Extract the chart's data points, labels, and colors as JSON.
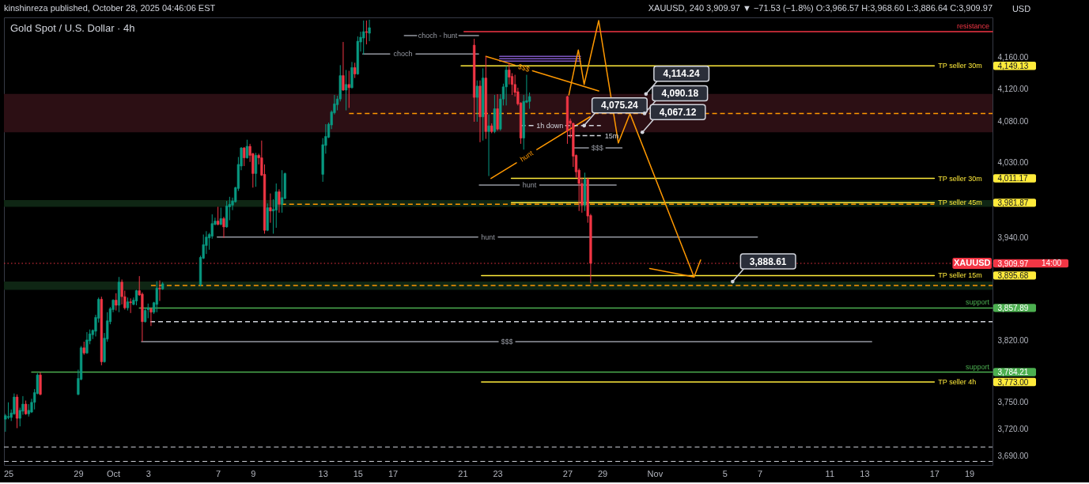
{
  "chart_data": {
    "type": "candlestick",
    "title": "Gold Spot / U.S. Dollar · 4h",
    "subtitle": "XAUUSD, 240 3,909.97 ▼ −71.53 (−1.8%) O:3,966.57 H:3,968.60 L:3,886.64 C:3,909.97",
    "ylabel": "USD",
    "log": true,
    "xlim": [
      "2025-09-24T18:00",
      "2025-11-20T08:00"
    ],
    "ylim": [
      3680,
      4210
    ],
    "xticks": [
      {
        "value": "2025-09-25",
        "label": "25"
      },
      {
        "value": "2025-09-29",
        "label": "29"
      },
      {
        "value": "2025-10-01",
        "label": "Oct"
      },
      {
        "value": "2025-10-03",
        "label": "3"
      },
      {
        "value": "2025-10-07",
        "label": "7"
      },
      {
        "value": "2025-10-09",
        "label": "9"
      },
      {
        "value": "2025-10-13",
        "label": "13"
      },
      {
        "value": "2025-10-15",
        "label": "15"
      },
      {
        "value": "2025-10-17",
        "label": "17"
      },
      {
        "value": "2025-10-21",
        "label": "21"
      },
      {
        "value": "2025-10-23",
        "label": "23"
      },
      {
        "value": "2025-10-27",
        "label": "27"
      },
      {
        "value": "2025-10-29",
        "label": "29"
      },
      {
        "value": "2025-11-01",
        "label": "Nov"
      },
      {
        "value": "2025-11-05",
        "label": "5"
      },
      {
        "value": "2025-11-07",
        "label": "7"
      },
      {
        "value": "2025-11-11",
        "label": "11"
      },
      {
        "value": "2025-11-13",
        "label": "13"
      },
      {
        "value": "2025-11-17",
        "label": "17"
      },
      {
        "value": "2025-11-19",
        "label": "19"
      }
    ],
    "yticks": [
      {
        "value": 4160,
        "label": "4,160.00"
      },
      {
        "value": 4149.13,
        "label": "4,149.13"
      },
      {
        "value": 4120,
        "label": "4,120.00"
      },
      {
        "value": 4080,
        "label": "4,080.00"
      },
      {
        "value": 4030,
        "label": "4,030.00"
      },
      {
        "value": 4011.17,
        "label": "4,011.17"
      },
      {
        "value": 3981.87,
        "label": "3,981.87"
      },
      {
        "value": 3940,
        "label": "3,940.00"
      },
      {
        "value": 3909.97,
        "label": "3,909.97"
      },
      {
        "value": 3895.68,
        "label": "3,895.68"
      },
      {
        "value": 3857.89,
        "label": "3,857.89"
      },
      {
        "value": 3820,
        "label": "3,820.00"
      },
      {
        "value": 3784.21,
        "label": "3,784.21"
      },
      {
        "value": 3773,
        "label": "3,773.00"
      },
      {
        "value": 3750,
        "label": "3,750.00"
      },
      {
        "value": 3720,
        "label": "3,720.00"
      },
      {
        "value": 3690,
        "label": "3,690.00"
      }
    ],
    "x": [
      "2025-09-24T20:00",
      "2025-09-25T00:00",
      "2025-09-25T04:00",
      "2025-09-25T08:00",
      "2025-09-25T12:00",
      "2025-09-25T16:00",
      "2025-09-25T20:00",
      "2025-09-26T00:00",
      "2025-09-26T04:00",
      "2025-09-26T08:00",
      "2025-09-26T12:00",
      "2025-09-26T16:00",
      "2025-09-26T20:00",
      "2025-09-29T00:00",
      "2025-09-29T04:00",
      "2025-09-29T08:00",
      "2025-09-29T12:00",
      "2025-09-29T16:00",
      "2025-09-29T20:00",
      "2025-09-30T00:00",
      "2025-09-30T04:00",
      "2025-09-30T08:00",
      "2025-09-30T12:00",
      "2025-09-30T16:00",
      "2025-09-30T20:00",
      "2025-10-01T00:00",
      "2025-10-01T04:00",
      "2025-10-01T08:00",
      "2025-10-01T12:00",
      "2025-10-01T16:00",
      "2025-10-01T20:00",
      "2025-10-02T00:00",
      "2025-10-02T04:00",
      "2025-10-02T08:00",
      "2025-10-02T12:00",
      "2025-10-02T16:00",
      "2025-10-02T20:00",
      "2025-10-03T00:00",
      "2025-10-03T04:00",
      "2025-10-03T08:00",
      "2025-10-03T12:00",
      "2025-10-03T16:00",
      "2025-10-03T20:00",
      "2025-10-06T00:00",
      "2025-10-06T04:00",
      "2025-10-06T08:00",
      "2025-10-06T12:00",
      "2025-10-06T16:00",
      "2025-10-06T20:00",
      "2025-10-07T00:00",
      "2025-10-07T04:00",
      "2025-10-07T08:00",
      "2025-10-07T12:00",
      "2025-10-07T16:00",
      "2025-10-07T20:00",
      "2025-10-08T00:00",
      "2025-10-08T04:00",
      "2025-10-08T08:00",
      "2025-10-08T12:00",
      "2025-10-08T16:00",
      "2025-10-08T20:00",
      "2025-10-09T00:00",
      "2025-10-09T04:00",
      "2025-10-09T08:00",
      "2025-10-09T12:00",
      "2025-10-09T16:00",
      "2025-10-09T20:00",
      "2025-10-10T00:00",
      "2025-10-10T04:00",
      "2025-10-10T08:00",
      "2025-10-10T12:00",
      "2025-10-10T16:00",
      "2025-10-10T20:00",
      "2025-10-13T00:00",
      "2025-10-13T04:00",
      "2025-10-13T08:00",
      "2025-10-13T12:00",
      "2025-10-13T16:00",
      "2025-10-13T20:00",
      "2025-10-14T00:00",
      "2025-10-14T04:00",
      "2025-10-14T08:00",
      "2025-10-14T12:00",
      "2025-10-14T16:00",
      "2025-10-14T20:00",
      "2025-10-15T00:00",
      "2025-10-15T04:00",
      "2025-10-15T08:00",
      "2025-10-15T12:00",
      "2025-10-15T16:00",
      "2025-10-21T16:00",
      "2025-10-21T20:00",
      "2025-10-22T00:00",
      "2025-10-22T04:00",
      "2025-10-22T08:00",
      "2025-10-22T12:00",
      "2025-10-22T16:00",
      "2025-10-22T20:00",
      "2025-10-23T00:00",
      "2025-10-23T04:00",
      "2025-10-23T08:00",
      "2025-10-23T12:00",
      "2025-10-23T16:00",
      "2025-10-23T20:00",
      "2025-10-24T00:00",
      "2025-10-24T04:00",
      "2025-10-24T08:00",
      "2025-10-24T12:00",
      "2025-10-24T16:00",
      "2025-10-24T20:00",
      "2025-10-27T00:00",
      "2025-10-27T04:00",
      "2025-10-27T08:00",
      "2025-10-27T12:00",
      "2025-10-27T16:00",
      "2025-10-27T20:00",
      "2025-10-28T00:00",
      "2025-10-28T04:00",
      "2025-10-28T08:00"
    ],
    "ohlc": [
      [
        3731,
        3737,
        3717,
        3735
      ],
      [
        3733,
        3750,
        3731,
        3734
      ],
      [
        3733,
        3742,
        3729,
        3738
      ],
      [
        3737,
        3760,
        3736,
        3756
      ],
      [
        3756,
        3759,
        3721,
        3732
      ],
      [
        3732,
        3744,
        3723,
        3741
      ],
      [
        3740,
        3757,
        3736,
        3748
      ],
      [
        3748,
        3752,
        3736,
        3737
      ],
      [
        3737,
        3748,
        3734,
        3741
      ],
      [
        3739,
        3754,
        3738,
        3750
      ],
      [
        3750,
        3765,
        3742,
        3761
      ],
      [
        3760,
        3783,
        3759,
        3781
      ],
      [
        3781,
        3784,
        3758,
        3759
      ],
      [
        3759,
        3787,
        3758,
        3777
      ],
      [
        3776,
        3814,
        3775,
        3812
      ],
      [
        3812,
        3819,
        3804,
        3806
      ],
      [
        3806,
        3830,
        3805,
        3821
      ],
      [
        3820,
        3833,
        3816,
        3828
      ],
      [
        3827,
        3833,
        3822,
        3832
      ],
      [
        3831,
        3850,
        3825,
        3847
      ],
      [
        3846,
        3870,
        3841,
        3868
      ],
      [
        3868,
        3871,
        3792,
        3796
      ],
      [
        3796,
        3829,
        3795,
        3823
      ],
      [
        3822,
        3853,
        3819,
        3843
      ],
      [
        3842,
        3859,
        3839,
        3857
      ],
      [
        3856,
        3868,
        3853,
        3867
      ],
      [
        3867,
        3875,
        3855,
        3861
      ],
      [
        3861,
        3894,
        3853,
        3888
      ],
      [
        3888,
        3891,
        3862,
        3871
      ],
      [
        3871,
        3878,
        3856,
        3858
      ],
      [
        3858,
        3870,
        3855,
        3865
      ],
      [
        3865,
        3869,
        3852,
        3864
      ],
      [
        3862,
        3870,
        3861,
        3867
      ],
      [
        3866,
        3879,
        3861,
        3878
      ],
      [
        3878,
        3895,
        3872,
        3873
      ],
      [
        3874,
        3876,
        3819,
        3842
      ],
      [
        3842,
        3858,
        3841,
        3855
      ],
      [
        3856,
        3863,
        3846,
        3858
      ],
      [
        3857,
        3858,
        3837,
        3853
      ],
      [
        3853,
        3865,
        3851,
        3864
      ],
      [
        3862,
        3889,
        3853,
        3881
      ],
      [
        3881,
        3890,
        3866,
        3880
      ],
      [
        3880,
        3888,
        3879,
        3886
      ],
      [
        3885,
        3919,
        3883,
        3917
      ],
      [
        3916,
        3944,
        3915,
        3932
      ],
      [
        3931,
        3948,
        3921,
        3941
      ],
      [
        3940,
        3946,
        3926,
        3944
      ],
      [
        3942,
        3968,
        3939,
        3957
      ],
      [
        3956,
        3964,
        3955,
        3960
      ],
      [
        3960,
        3977,
        3955,
        3956
      ],
      [
        3956,
        3976,
        3955,
        3963
      ],
      [
        3963,
        3965,
        3940,
        3953
      ],
      [
        3953,
        3984,
        3952,
        3978
      ],
      [
        3977,
        3989,
        3961,
        3980
      ],
      [
        3979,
        3988,
        3973,
        3984
      ],
      [
        3983,
        4001,
        3982,
        4000
      ],
      [
        3999,
        4037,
        3996,
        4028
      ],
      [
        4026,
        4049,
        4021,
        4048
      ],
      [
        4048,
        4049,
        4026,
        4036
      ],
      [
        4036,
        4058,
        4035,
        4050
      ],
      [
        4050,
        4053,
        4031,
        4039
      ],
      [
        4041,
        4042,
        4000,
        4017
      ],
      [
        4017,
        4042,
        4001,
        4039
      ],
      [
        4039,
        4041,
        4028,
        4036
      ],
      [
        4036,
        4057,
        4014,
        4015
      ],
      [
        4016,
        4028,
        3945,
        3949
      ],
      [
        3949,
        3981,
        3948,
        3976
      ],
      [
        3976,
        3993,
        3958,
        3972
      ],
      [
        3972,
        3986,
        3945,
        3974
      ],
      [
        3973,
        4005,
        3952,
        3995
      ],
      [
        3995,
        3998,
        3970,
        3980
      ],
      [
        3980,
        4021,
        3970,
        3988
      ],
      [
        3987,
        4018,
        3986,
        4017
      ],
      [
        4016,
        4060,
        4007,
        4052
      ],
      [
        4051,
        4077,
        4041,
        4062
      ],
      [
        4061,
        4079,
        4060,
        4077
      ],
      [
        4076,
        4094,
        4071,
        4092
      ],
      [
        4091,
        4113,
        4089,
        4102
      ],
      [
        4101,
        4112,
        4094,
        4108
      ],
      [
        4108,
        4150,
        4105,
        4137
      ],
      [
        4137,
        4179,
        4118,
        4119
      ],
      [
        4119,
        4144,
        4094,
        4126
      ],
      [
        4126,
        4143,
        4097,
        4122
      ],
      [
        4122,
        4154,
        4121,
        4147
      ],
      [
        4147,
        4153,
        4134,
        4139
      ],
      [
        4139,
        4186,
        4138,
        4180
      ],
      [
        4179,
        4192,
        4167,
        4185
      ],
      [
        4184,
        4206,
        4163,
        4192
      ],
      [
        4192,
        4206,
        4176,
        4191
      ],
      [
        4190,
        4207,
        4180,
        4197
      ],
      [
        4175,
        4183,
        4080,
        4110
      ],
      [
        4110,
        4131,
        4080,
        4124
      ],
      [
        4124,
        4131,
        4055,
        4086
      ],
      [
        4086,
        4146,
        4057,
        4134
      ],
      [
        4134,
        4161,
        4059,
        4068
      ],
      [
        4068,
        4089,
        4014,
        4075
      ],
      [
        4075,
        4078,
        4066,
        4068
      ],
      [
        4068,
        4113,
        4066,
        4096
      ],
      [
        4096,
        4114,
        4069,
        4071
      ],
      [
        4071,
        4114,
        4069,
        4108
      ],
      [
        4108,
        4127,
        4100,
        4123
      ],
      [
        4123,
        4149,
        4100,
        4144
      ],
      [
        4144,
        4153,
        4126,
        4135
      ],
      [
        4136,
        4140,
        4113,
        4126
      ],
      [
        4126,
        4138,
        4111,
        4116
      ],
      [
        4117,
        4122,
        4100,
        4102
      ],
      [
        4103,
        4104,
        4053,
        4060
      ],
      [
        4060,
        4113,
        4046,
        4105
      ],
      [
        4104,
        4138,
        4103,
        4106
      ],
      [
        4105,
        4116,
        4096,
        4111
      ],
      [
        4111,
        4112,
        4053,
        4069
      ],
      [
        4081,
        4084,
        4060,
        4078
      ],
      [
        4078,
        4079,
        4025,
        4038
      ],
      [
        4039,
        4040,
        4012,
        4019
      ],
      [
        4021,
        4023,
        3972,
        4005
      ],
      [
        4005,
        4012,
        3970,
        3979
      ],
      [
        3979,
        4018,
        3972,
        4010
      ],
      [
        4010,
        4012,
        3958,
        3966
      ],
      [
        3966.57,
        3968.6,
        3886.64,
        3909.97
      ]
    ],
    "colors": [
      "#089981",
      "#089981",
      "#089981",
      "#089981",
      "#f23645",
      "#089981",
      "#089981",
      "#f23645",
      "#089981",
      "#089981",
      "#089981",
      "#089981",
      "#f23645",
      "#089981",
      "#089981",
      "#f23645",
      "#089981",
      "#089981",
      "#089981",
      "#089981",
      "#089981",
      "#f23645",
      "#089981",
      "#089981",
      "#089981",
      "#089981",
      "#f23645",
      "#089981",
      "#f23645",
      "#f23645",
      "#089981",
      "#f23645",
      "#089981",
      "#089981",
      "#f23645",
      "#f23645",
      "#089981",
      "#089981",
      "#f23645",
      "#089981",
      "#089981",
      "#f23645",
      "#089981",
      "#089981",
      "#089981",
      "#089981",
      "#089981",
      "#089981",
      "#089981",
      "#f23645",
      "#089981",
      "#f23645",
      "#089981",
      "#089981",
      "#089981",
      "#089981",
      "#089981",
      "#089981",
      "#f23645",
      "#089981",
      "#f23645",
      "#f23645",
      "#089981",
      "#f23645",
      "#f23645",
      "#f23645",
      "#089981",
      "#f23645",
      "#089981",
      "#089981",
      "#f23645",
      "#089981",
      "#089981",
      "#089981",
      "#089981",
      "#089981",
      "#089981",
      "#089981",
      "#089981",
      "#089981",
      "#f23645",
      "#089981",
      "#f23645",
      "#089981",
      "#f23645",
      "#089981",
      "#089981",
      "#089981",
      "#f23645",
      "#089981",
      "#f23645",
      "#089981",
      "#f23645",
      "#089981",
      "#f23645",
      "#089981",
      "#f23645",
      "#089981",
      "#f23645",
      "#089981",
      "#089981",
      "#089981",
      "#f23645",
      "#f23645",
      "#f23645",
      "#f23645",
      "#f23645",
      "#089981",
      "#089981",
      "#089981",
      "#f23645",
      "#f23645",
      "#f23645",
      "#f23645",
      "#f23645",
      "#f23645",
      "#089981",
      "#f23645",
      "#f23645"
    ],
    "series": [
      {
        "type": "line",
        "color": "#ff9800",
        "line_style": "dashed",
        "x": [
          "2025-10-14T12:00",
          "2025-11-20T08:00"
        ],
        "values": [
          4090.18,
          4090.18
        ]
      },
      {
        "type": "line",
        "color": "#ff9800",
        "line_style": "dashed",
        "x": [
          "2025-10-10T15:00",
          "2025-11-17T00:00"
        ],
        "values": [
          3980,
          3980
        ]
      },
      {
        "type": "line",
        "color": "#ff9800",
        "line_style": "dashed",
        "x": [
          "2025-10-03T04:00",
          "2025-11-20T08:00"
        ],
        "values": [
          3884,
          3884
        ]
      },
      {
        "type": "line",
        "color": "#d1d4dc",
        "line_style": "dashed",
        "x": [
          "2025-10-03T03:00",
          "2025-11-20T08:00"
        ],
        "values": [
          3842,
          3842
        ]
      },
      {
        "type": "line",
        "name": "resistance",
        "color": "#f23645",
        "x": [
          "2025-10-21T02:00",
          "2025-11-20T08:00"
        ],
        "values": [
          4192,
          4192
        ]
      },
      {
        "type": "line",
        "name": "TP seller 30m",
        "color": "#ffeb3b",
        "x": [
          "2025-10-20T22:00",
          "2025-11-17T00:00"
        ],
        "values": [
          4149.13,
          4149.13
        ]
      },
      {
        "type": "line",
        "name": "TP seller 30m",
        "color": "#ffeb3b",
        "x": [
          "2025-10-23T19:00",
          "2025-11-17T00:00"
        ],
        "values": [
          4011.17,
          4011.17
        ]
      },
      {
        "type": "line",
        "name": "TP seller 45m",
        "color": "#ffeb3b",
        "x": [
          "2025-10-23T19:00",
          "2025-11-17T00:00"
        ],
        "values": [
          3981.87,
          3981.87
        ]
      },
      {
        "type": "line",
        "name": "TP seller 15m",
        "color": "#ffeb3b",
        "x": [
          "2025-10-22T02:00",
          "2025-11-17T00:00"
        ],
        "values": [
          3895.68,
          3895.68
        ]
      },
      {
        "type": "line",
        "name": "TP seller 4h",
        "color": "#ffeb3b",
        "x": [
          "2025-10-22T02:00",
          "2025-11-17T00:00"
        ],
        "values": [
          3773,
          3773
        ]
      },
      {
        "type": "line",
        "name": "support",
        "color": "#4caf50",
        "x": [
          "2025-10-02T12:00",
          "2025-11-20T08:00"
        ],
        "values": [
          3857.89,
          3857.89
        ]
      },
      {
        "type": "line",
        "name": "support",
        "color": "#4caf50",
        "x": [
          "2025-09-26T08:00",
          "2025-11-20T08:00"
        ],
        "values": [
          3784.21,
          3784.21
        ]
      },
      {
        "type": "line",
        "name": "hunt",
        "color": "#9598a1",
        "x": [
          "2025-10-06T23:00",
          "2025-10-21T21:00",
          "2025-10-22T11:00",
          "2025-10-23T01:00",
          "2025-11-06T21:00"
        ],
        "values": [
          3941,
          3941,
          null,
          3941,
          3941
        ]
      },
      {
        "type": "line",
        "name": "choch",
        "color": "#9598a1",
        "x": [
          "2025-10-15T07:00",
          "2025-10-16T20:00",
          "2025-10-17T14:00",
          "2025-10-18T08:00",
          "2025-10-21T22:00"
        ],
        "values": [
          4164,
          4164,
          null,
          4164,
          4164
        ]
      },
      {
        "type": "line",
        "name": "choch - hunt",
        "color": "#9598a1",
        "x": [
          "2025-10-17T16:00",
          "2025-10-18T09:00",
          "2025-10-19T14:00",
          "2025-10-20T19:00",
          "2025-10-21T22:00"
        ],
        "values": [
          4187,
          4187,
          null,
          4187,
          4187
        ]
      },
      {
        "type": "line",
        "name": "hunt",
        "color": "#9598a1",
        "x": [
          "2025-10-21T23:00",
          "2025-10-24T06:00",
          "2025-10-24T20:00",
          "2025-10-25T10:00",
          "2025-10-29T19:00"
        ],
        "values": [
          4003,
          4003,
          null,
          4003,
          4003
        ]
      },
      {
        "type": "line",
        "name": "$$$",
        "color": "#9598a1",
        "x": [
          "2025-10-27T09:00",
          "2025-10-28T05:00",
          "2025-10-28T17:00",
          "2025-10-29T05:00",
          "2025-10-30T03:00"
        ],
        "values": [
          4048,
          4048,
          null,
          4048,
          4048
        ]
      },
      {
        "type": "line",
        "name": "$$$",
        "color": "#9598a1",
        "x": [
          "2025-10-02T15:00",
          "2025-10-23T01:00",
          "2025-10-23T13:00",
          "2025-10-24T01:00",
          "2025-11-13T10:00"
        ],
        "values": [
          3819,
          3819,
          null,
          3819,
          3819
        ]
      },
      {
        "type": "line",
        "color": "#7e57c2",
        "x": [
          "2025-10-23T03:00",
          "2025-10-27T18:00"
        ],
        "values": [
          4161,
          4161
        ]
      },
      {
        "type": "line",
        "color": "#7e57c2",
        "x": [
          "2025-10-23T03:00",
          "2025-10-27T18:00"
        ],
        "values": [
          4158,
          4158
        ]
      },
      {
        "type": "line",
        "color": "#7e57c2",
        "x": [
          "2025-10-23T03:00",
          "2025-10-27T18:00"
        ],
        "values": [
          4155,
          4155
        ]
      },
      {
        "type": "line",
        "name": "$$$",
        "color": "#ff9800",
        "x": [
          "2025-10-22T08:00",
          "2025-10-24T00:00",
          "2025-10-24T12:00",
          "2025-10-25T00:00",
          "2025-10-28T19:00"
        ],
        "values": [
          4161,
          4150,
          null,
          4143,
          4118
        ]
      },
      {
        "type": "line",
        "name": "hunt",
        "color": "#ff9800",
        "x": [
          "2025-10-22T15:00",
          "2025-10-24T02:00",
          "2025-10-24T16:00",
          "2025-10-25T06:00",
          "2025-10-28T07:00"
        ],
        "values": [
          4011,
          4030,
          null,
          4046,
          4086
        ]
      },
      {
        "type": "line",
        "name": "1h down",
        "color": "#d1d4dc",
        "line_style": "dashed",
        "x": [
          "2025-10-24T08:00",
          "2025-10-25T03:00",
          "2025-10-26T00:00",
          "2025-10-26T21:00",
          "2025-10-28T22:00"
        ],
        "values": [
          4075.24,
          4075.24,
          null,
          4075.24,
          4075.24
        ]
      },
      {
        "type": "line",
        "name": "15m",
        "color": "#d1d4dc",
        "line_style": "dashed",
        "x": [
          "2025-10-27T01:00",
          "2025-10-28T22:00"
        ],
        "values": [
          4063,
          4063
        ]
      },
      {
        "type": "line",
        "color": "#ff9800",
        "x": [
          "2025-10-27T02:00",
          "2025-10-27T15:00",
          "2025-10-27T23:00",
          "2025-10-28T19:00",
          "2025-10-29T22:00",
          "2025-10-30T14:00",
          "2025-11-03T06:00",
          "2025-11-03T15:00"
        ],
        "values": [
          4113,
          4169,
          4126,
          4206,
          4054,
          4090,
          3894,
          3914
        ]
      },
      {
        "type": "line",
        "color": "#ff9800",
        "x": [
          "2025-10-31T17:00",
          "2025-11-03T06:00"
        ],
        "values": [
          3904,
          3894
        ]
      }
    ],
    "ref_lines": [
      {
        "axis": "y",
        "value": 3909.97,
        "label": "XAUUSD",
        "color": "#f23645",
        "line_style": "dotted"
      },
      {
        "axis": "y",
        "value": 3700,
        "color": "#d1d4dc",
        "line_style": "dashed"
      },
      {
        "axis": "y",
        "value": 3684,
        "color": "#d1d4dc",
        "line_style": "dashed"
      }
    ],
    "bands": [
      {
        "axis": "y",
        "from": 4067.12,
        "to": 4114.24,
        "color": "#2c0f14"
      },
      {
        "axis": "y",
        "from": 3977,
        "to": 3985,
        "color": "#0f2614"
      },
      {
        "axis": "y",
        "from": 3879,
        "to": 3888.61,
        "color": "#0f2614"
      }
    ],
    "annotations": [
      "kinshinreza published, October 28, 2025 04:46:06 EST",
      "14:00",
      {
        "text": "4,114.24",
        "x": "2025-10-31T12:00",
        "y": 4114.24
      },
      {
        "text": "4,090.18",
        "x": "2025-10-31T10:00",
        "y": 4090.18
      },
      {
        "text": "4,067.12",
        "x": "2025-10-31T07:00",
        "y": 4067.12
      },
      {
        "text": "4,075.24",
        "x": "2025-10-27T23:00",
        "y": 4075.24
      },
      {
        "text": "3,888.61",
        "x": "2025-11-05T11:00",
        "y": 3888.61
      }
    ]
  }
}
